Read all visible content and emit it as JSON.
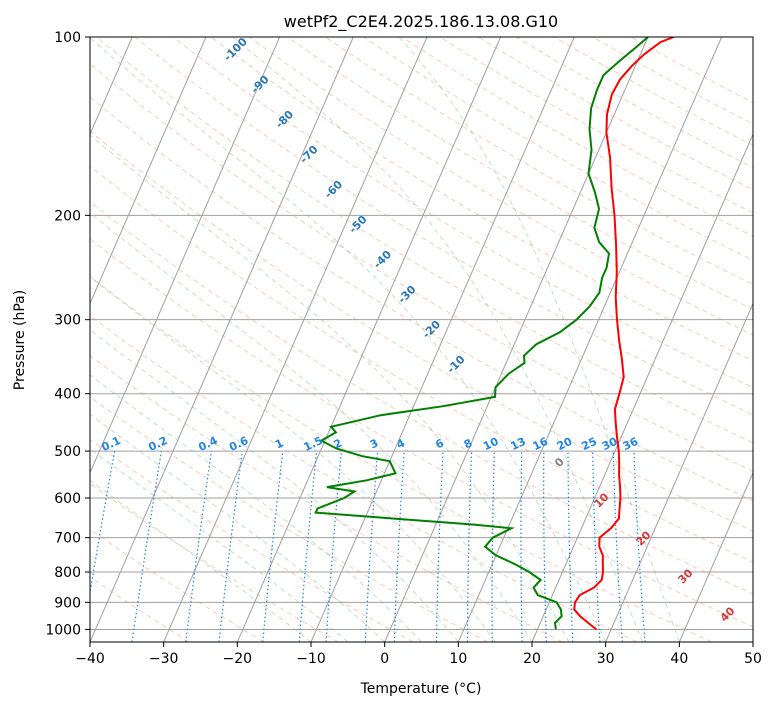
{
  "chart_data": {
    "type": "line",
    "title": "wetPf2_C2E4.2025.186.13.08.G10",
    "xlabel": "Temperature (°C)",
    "ylabel": "Pressure (hPa)",
    "xlim": [
      -40,
      50
    ],
    "ylim": [
      1050,
      100
    ],
    "y_scale": "log",
    "grid": true,
    "x_ticks": [
      -40,
      -30,
      -20,
      -10,
      0,
      10,
      20,
      30,
      40,
      50
    ],
    "y_ticks": [
      1000,
      900,
      800,
      700,
      600,
      500,
      400,
      300,
      200,
      100
    ],
    "series": [
      {
        "color": "#ff0000",
        "points": [
          [
            28.0,
            1000
          ],
          [
            26.5,
            975
          ],
          [
            25.0,
            950
          ],
          [
            23.8,
            925
          ],
          [
            23.5,
            900
          ],
          [
            23.7,
            875
          ],
          [
            25.2,
            850
          ],
          [
            25.8,
            825
          ],
          [
            25.5,
            800
          ],
          [
            25.0,
            775
          ],
          [
            24.5,
            750
          ],
          [
            23.5,
            725
          ],
          [
            23.0,
            700
          ],
          [
            24.0,
            675
          ],
          [
            24.5,
            650
          ],
          [
            24.0,
            625
          ],
          [
            23.5,
            600
          ],
          [
            22.8,
            575
          ],
          [
            22.0,
            550
          ],
          [
            21.3,
            525
          ],
          [
            20.5,
            500
          ],
          [
            19.5,
            475
          ],
          [
            18.5,
            450
          ],
          [
            17.5,
            425
          ],
          [
            17.2,
            400
          ],
          [
            16.8,
            375
          ],
          [
            15.5,
            350
          ],
          [
            14.0,
            325
          ],
          [
            12.5,
            300
          ],
          [
            11.0,
            275
          ],
          [
            9.7,
            250
          ],
          [
            8.0,
            225
          ],
          [
            6.0,
            200
          ],
          [
            4.0,
            180
          ],
          [
            2.0,
            160
          ],
          [
            0.0,
            145
          ],
          [
            -1.0,
            135
          ],
          [
            -1.5,
            125
          ],
          [
            -1.3,
            118
          ],
          [
            -0.5,
            112
          ],
          [
            0.5,
            107
          ],
          [
            2.0,
            102
          ],
          [
            3.5,
            100
          ]
        ]
      },
      {
        "color": "#008000",
        "points": [
          [
            22.5,
            1000
          ],
          [
            22.0,
            975
          ],
          [
            22.5,
            950
          ],
          [
            22.0,
            925
          ],
          [
            21.0,
            900
          ],
          [
            18.0,
            875
          ],
          [
            17.0,
            850
          ],
          [
            17.5,
            825
          ],
          [
            15.5,
            800
          ],
          [
            13.0,
            775
          ],
          [
            10.0,
            750
          ],
          [
            8.0,
            725
          ],
          [
            8.5,
            700
          ],
          [
            10.5,
            675
          ],
          [
            5.0,
            665
          ],
          [
            -6.0,
            650
          ],
          [
            -17.0,
            635
          ],
          [
            -17.0,
            625
          ],
          [
            -14.0,
            600
          ],
          [
            -13.0,
            585
          ],
          [
            -17.0,
            575
          ],
          [
            -12.0,
            560
          ],
          [
            -8.5,
            545
          ],
          [
            -10.0,
            520
          ],
          [
            -14.0,
            510
          ],
          [
            -18.0,
            495
          ],
          [
            -20.5,
            480
          ],
          [
            -19.0,
            465
          ],
          [
            -20.0,
            455
          ],
          [
            -14.0,
            435
          ],
          [
            -6.0,
            420
          ],
          [
            0.5,
            405
          ],
          [
            0.0,
            390
          ],
          [
            1.0,
            370
          ],
          [
            2.5,
            355
          ],
          [
            2.0,
            345
          ],
          [
            3.0,
            330
          ],
          [
            5.5,
            315
          ],
          [
            7.0,
            300
          ],
          [
            8.0,
            285
          ],
          [
            8.5,
            270
          ],
          [
            8.0,
            255
          ],
          [
            8.0,
            245
          ],
          [
            7.5,
            232
          ],
          [
            5.5,
            222
          ],
          [
            4.0,
            210
          ],
          [
            3.5,
            195
          ],
          [
            2.0,
            183
          ],
          [
            0.0,
            170
          ],
          [
            -1.0,
            155
          ],
          [
            -2.5,
            143
          ],
          [
            -3.5,
            132
          ],
          [
            -3.8,
            123
          ],
          [
            -3.8,
            116
          ],
          [
            -2.5,
            110
          ],
          [
            -1.0,
            104
          ],
          [
            0.0,
            100
          ]
        ]
      }
    ],
    "annotations": {
      "dry_adiabats": [
        "-100",
        "-90",
        "-80",
        "-70",
        "-60",
        "-50",
        "-40",
        "-30",
        "-20",
        "-10",
        "0",
        "10",
        "20",
        "30",
        "40"
      ],
      "mixing_ratios": [
        "0.1",
        "0.2",
        "0.4",
        "0.6",
        "1",
        "1.5",
        "2",
        "3",
        "4",
        "6",
        "8",
        "10",
        "13",
        "16",
        "20",
        "25",
        "30",
        "36"
      ]
    }
  }
}
